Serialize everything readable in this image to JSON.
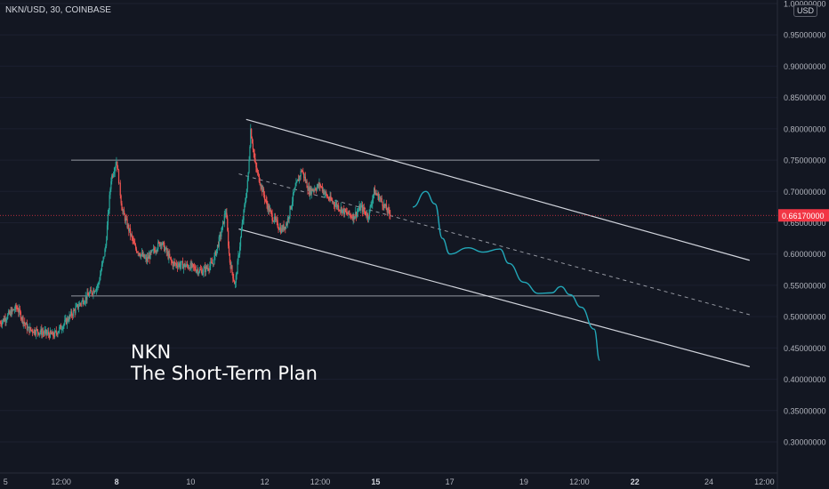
{
  "header": {
    "symbol_info": "NKN/USD, 30, COINBASE",
    "currency": "USD"
  },
  "annotation": {
    "title_line1": "NKN",
    "title_line2": "The Short-Term Plan"
  },
  "colors": {
    "background": "#131722",
    "up_candle": "#26a69a",
    "down_candle": "#ef5350",
    "projection": "#22a7b8",
    "drawing_lines": "#d1d4dc",
    "price_label": "#f23645"
  },
  "chart_data": {
    "type": "candlestick",
    "title": "",
    "xlabel": "",
    "ylabel": "",
    "ylim": [
      0.27,
      1.0
    ],
    "y_ticks": [
      "1.00000000",
      "0.95000000",
      "0.90000000",
      "0.85000000",
      "0.80000000",
      "0.75000000",
      "0.70000000",
      "0.65000000",
      "0.60000000",
      "0.55000000",
      "0.50000000",
      "0.45000000",
      "0.40000000",
      "0.35000000",
      "0.30000000"
    ],
    "y_tick_values": [
      1.0,
      0.95,
      0.9,
      0.85,
      0.8,
      0.75,
      0.7,
      0.65,
      0.6,
      0.55,
      0.5,
      0.45,
      0.4,
      0.35,
      0.3
    ],
    "x_ticks": [
      "5",
      "12:00",
      "8",
      "10",
      "12",
      "12:00",
      "15",
      "17",
      "19",
      "12:00",
      "22",
      "24",
      "12:00"
    ],
    "x_tick_days": [
      5,
      6.5,
      8,
      10,
      12,
      13.5,
      15,
      17,
      19,
      20.5,
      22,
      24,
      25.5
    ],
    "x_range_days": [
      4.85,
      25.85
    ],
    "last_price": "0.66170000",
    "last_price_value": 0.6617,
    "price_path": [
      [
        4.85,
        0.49
      ],
      [
        5.3,
        0.515
      ],
      [
        5.6,
        0.48
      ],
      [
        6.0,
        0.475
      ],
      [
        6.3,
        0.47
      ],
      [
        6.6,
        0.49
      ],
      [
        7.0,
        0.52
      ],
      [
        7.5,
        0.55
      ],
      [
        7.7,
        0.61
      ],
      [
        7.85,
        0.72
      ],
      [
        8.0,
        0.75
      ],
      [
        8.15,
        0.67
      ],
      [
        8.5,
        0.61
      ],
      [
        8.8,
        0.59
      ],
      [
        9.2,
        0.62
      ],
      [
        9.5,
        0.585
      ],
      [
        10.0,
        0.58
      ],
      [
        10.3,
        0.572
      ],
      [
        10.6,
        0.585
      ],
      [
        10.85,
        0.64
      ],
      [
        10.95,
        0.672
      ],
      [
        11.05,
        0.59
      ],
      [
        11.2,
        0.55
      ],
      [
        11.4,
        0.65
      ],
      [
        11.55,
        0.72
      ],
      [
        11.62,
        0.8
      ],
      [
        11.75,
        0.74
      ],
      [
        11.9,
        0.71
      ],
      [
        12.05,
        0.68
      ],
      [
        12.2,
        0.66
      ],
      [
        12.45,
        0.638
      ],
      [
        12.6,
        0.65
      ],
      [
        12.8,
        0.7
      ],
      [
        13.0,
        0.735
      ],
      [
        13.2,
        0.7
      ],
      [
        13.5,
        0.71
      ],
      [
        13.7,
        0.69
      ],
      [
        13.9,
        0.68
      ],
      [
        14.2,
        0.665
      ],
      [
        14.4,
        0.66
      ],
      [
        14.6,
        0.675
      ],
      [
        14.8,
        0.66
      ],
      [
        14.95,
        0.7
      ],
      [
        15.1,
        0.69
      ],
      [
        15.3,
        0.67
      ],
      [
        15.4,
        0.6617
      ]
    ],
    "resistance_level": 0.75,
    "support_level": 0.533,
    "channel_upper": [
      [
        11.5,
        0.815
      ],
      [
        25.1,
        0.59
      ]
    ],
    "channel_lower": [
      [
        11.3,
        0.64
      ],
      [
        25.1,
        0.42
      ]
    ],
    "channel_mid": [
      [
        11.3,
        0.728
      ],
      [
        25.1,
        0.503
      ]
    ],
    "projection_path": [
      [
        16.0,
        0.675
      ],
      [
        16.35,
        0.7
      ],
      [
        16.6,
        0.68
      ],
      [
        16.8,
        0.625
      ],
      [
        17.0,
        0.6
      ],
      [
        17.5,
        0.61
      ],
      [
        17.9,
        0.603
      ],
      [
        18.35,
        0.608
      ],
      [
        18.6,
        0.585
      ],
      [
        19.0,
        0.555
      ],
      [
        19.4,
        0.537
      ],
      [
        19.75,
        0.538
      ],
      [
        20.0,
        0.548
      ],
      [
        20.25,
        0.535
      ],
      [
        20.55,
        0.515
      ],
      [
        20.9,
        0.48
      ],
      [
        21.05,
        0.43
      ]
    ]
  }
}
